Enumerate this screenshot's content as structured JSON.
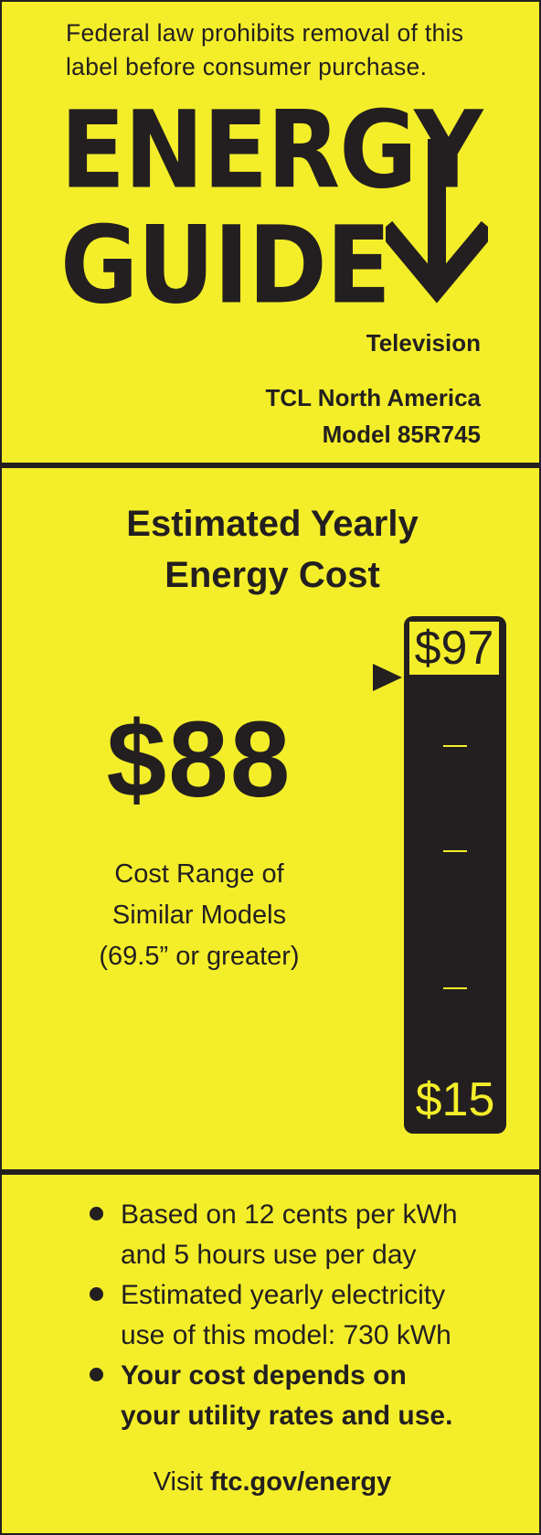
{
  "header": {
    "federal_notice_line1": "Federal law prohibits removal of this",
    "federal_notice_line2": "label before consumer purchase.",
    "logo_line1": "ENERGY",
    "logo_line2": "GUIDE",
    "arrow_icon": "down-arrow-icon",
    "product_type": "Television",
    "manufacturer": "TCL North America",
    "model": "Model 85R745"
  },
  "cost": {
    "heading_line1": "Estimated Yearly",
    "heading_line2": "Energy Cost",
    "value": "$88",
    "range_caption_line1": "Cost Range of",
    "range_caption_line2": "Similar Models",
    "range_caption_line3": "(69.5” or greater)"
  },
  "scale": {
    "max_label": "$97",
    "min_label": "$15",
    "max": 97,
    "min": 15,
    "pointer_icon": "triangle-pointer-icon",
    "pointer_position": "top"
  },
  "facts": {
    "item1_line1": "Based on 12 cents per kWh",
    "item1_line2": "and 5 hours use per day",
    "item2_line1": "Estimated yearly electricity",
    "item2_line2": "use of this model: 730 kWh",
    "item3_line1": "Your cost depends on",
    "item3_line2": "your utility rates and use."
  },
  "footer": {
    "visit_prefix": "Visit ",
    "visit_link": "ftc.gov/energy"
  },
  "colors": {
    "background": "#f4ee2a",
    "ink": "#231f20"
  }
}
